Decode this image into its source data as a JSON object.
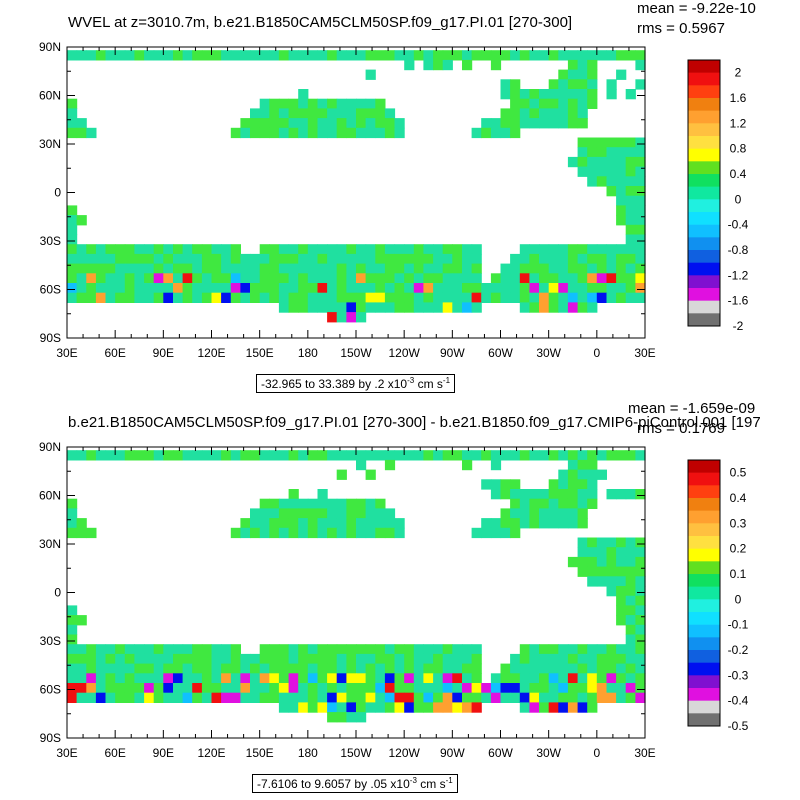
{
  "panels": [
    {
      "title": "WVEL at z=3010.7m, b.e21.B1850CAM5CLM50SP.f09_g17.PI.01 [270-300]",
      "mean_text": "mean = -9.22e-10",
      "rms_text": "rms = 0.5967",
      "range_text": "-32.965 to 33.389 by .2 x10",
      "range_exp": "-3",
      "range_unit": "cm s",
      "range_unit_exp": "-1",
      "colorbar_labels": [
        "2",
        "1.6",
        "1.2",
        "0.8",
        "0.4",
        "0",
        "-0.4",
        "-0.8",
        "-1.2",
        "-1.6",
        "-2"
      ]
    },
    {
      "title": "b.e21.B1850CAM5CLM50SP.f09_g17.PI.01 [270-300] - b.e21.B1850.f09_g17.CMIP6-piControl.001 [197",
      "mean_text": "mean = -1.659e-09",
      "rms_text": "rms = 0.1769",
      "range_text": "-7.6106 to 9.6057 by .05 x10",
      "range_exp": "-3",
      "range_unit": "cm s",
      "range_unit_exp": "-1",
      "colorbar_labels": [
        "0.5",
        "0.4",
        "0.3",
        "0.2",
        "0.1",
        "0",
        "-0.1",
        "-0.2",
        "-0.3",
        "-0.4",
        "-0.5"
      ]
    }
  ],
  "lat_labels": [
    "90N",
    "60N",
    "30N",
    "0",
    "30S",
    "60S",
    "90S"
  ],
  "lon_labels": [
    "30E",
    "60E",
    "90E",
    "120E",
    "150E",
    "180",
    "150W",
    "120W",
    "90W",
    "60W",
    "30W",
    "0",
    "30E"
  ],
  "colorbar_colors": [
    "#c00000",
    "#f01010",
    "#ff4010",
    "#f08010",
    "#ffa030",
    "#ffc040",
    "#ffe040",
    "#ffff00",
    "#60e020",
    "#10e060",
    "#10e8a0",
    "#20f0e0",
    "#10e0ff",
    "#10c0ff",
    "#1090f0",
    "#1060e0",
    "#0010f0",
    "#8010d0",
    "#e010e0",
    "#d8d8d8",
    "#707070"
  ],
  "colors": {
    "ocean_main": "#20e0a0",
    "ocean_alt": "#40e840",
    "land": "#ffffff"
  }
}
